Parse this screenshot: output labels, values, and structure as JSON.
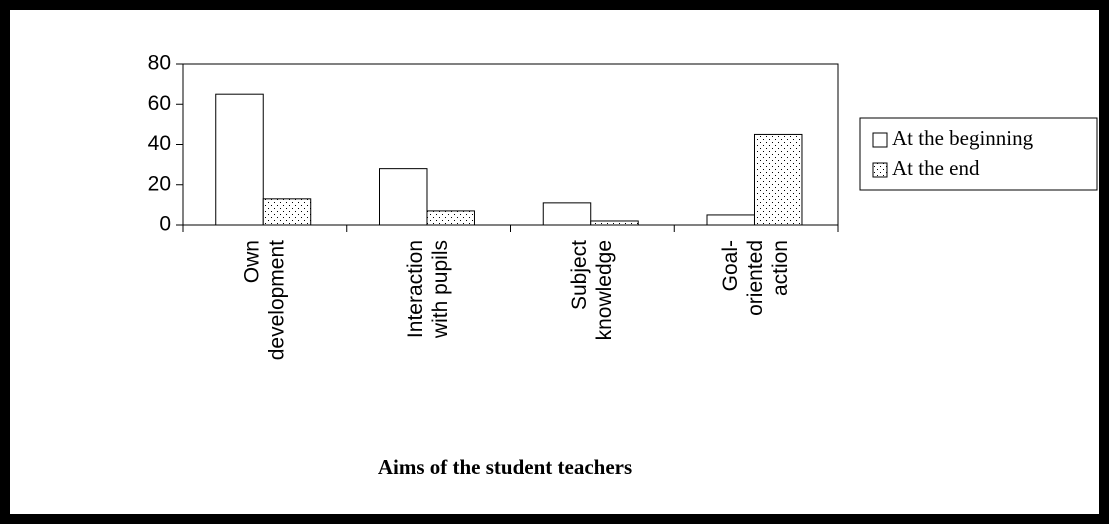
{
  "chart_data": {
    "type": "bar",
    "x_label": "Aims of the student teachers",
    "categories": [
      "Own\ndevelopment",
      "Interaction\nwith pupils",
      "Subject\nknowledge",
      "Goal-\noriented\naction"
    ],
    "series": [
      {
        "name": "At the beginning",
        "color": "#ffffff",
        "pattern": "none",
        "values": [
          65,
          28,
          11,
          5
        ]
      },
      {
        "name": "At the end",
        "color": "#ffffff",
        "pattern": "dots",
        "values": [
          13,
          7,
          2,
          45
        ]
      }
    ],
    "ylim": [
      0,
      80
    ],
    "yticks": [
      0,
      20,
      40,
      60,
      80
    ],
    "grid": false,
    "legend": "right"
  }
}
